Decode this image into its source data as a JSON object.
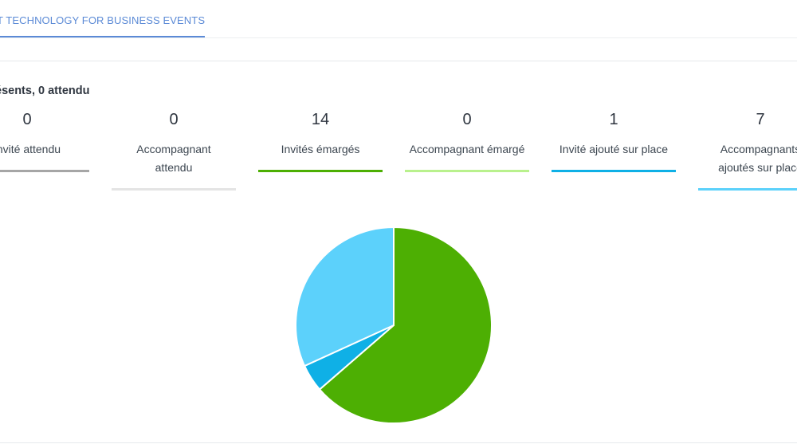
{
  "tab": {
    "label": "T TECHNOLOGY FOR BUSINESS EVENTS"
  },
  "summary": "ésents, 0 attendu",
  "stats": [
    {
      "count": "0",
      "label": "Invité attendu",
      "color": "#a6a6a6"
    },
    {
      "count": "0",
      "label": "Accompagnant\nattendu",
      "color": "#e4e4e4"
    },
    {
      "count": "14",
      "label": "Invités émargés",
      "color": "#4daf03"
    },
    {
      "count": "0",
      "label": "Accompagnant émargé",
      "color": "#b9f18d"
    },
    {
      "count": "1",
      "label": "Invité ajouté sur place",
      "color": "#0fb0e6"
    },
    {
      "count": "7",
      "label": "Accompagnants\najoutés sur place",
      "color": "#5cd1fb"
    }
  ],
  "chart_data": {
    "type": "pie",
    "categories": [
      "Invité attendu",
      "Accompagnant attendu",
      "Invités émargés",
      "Accompagnant émargé",
      "Invité ajouté sur place",
      "Accompagnants ajoutés sur place"
    ],
    "values": [
      0,
      0,
      14,
      0,
      1,
      7
    ],
    "colors": [
      "#a6a6a6",
      "#e4e4e4",
      "#4daf03",
      "#b9f18d",
      "#0fb0e6",
      "#5cd1fb"
    ]
  }
}
